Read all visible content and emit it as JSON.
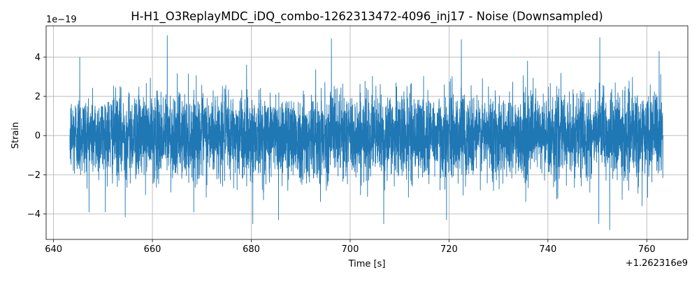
{
  "chart_data": {
    "type": "line",
    "title": "H-H1_O3ReplayMDC_iDQ_combo-1262313472-4096_inj17 - Noise (Downsampled)",
    "xlabel": "Time [s]",
    "ylabel": "Strain",
    "x_offset_label": "+1.262316e9",
    "y_exponent_label": "1e−19",
    "xlim": [
      638.5,
      768.3
    ],
    "ylim": [
      -5.3,
      5.6
    ],
    "x_ticks": [
      640,
      660,
      680,
      700,
      720,
      740,
      760
    ],
    "x_tick_labels": [
      "640",
      "660",
      "680",
      "700",
      "720",
      "740",
      "760"
    ],
    "y_ticks": [
      -4,
      -2,
      0,
      2,
      4
    ],
    "y_tick_labels": [
      "−4",
      "−2",
      "0",
      "2",
      "4"
    ],
    "grid": true,
    "line_color": "#1f77b4",
    "series": [
      {
        "x_start": 643.3,
        "x_end": 763.3,
        "noise_sigma": 1.05,
        "extremes": [
          {
            "x": 663.0,
            "y": 5.1
          },
          {
            "x": 696.2,
            "y": 4.95
          },
          {
            "x": 722.5,
            "y": 4.9
          },
          {
            "x": 750.5,
            "y": 5.0
          },
          {
            "x": 762.5,
            "y": 4.3
          },
          {
            "x": 645.3,
            "y": 4.0
          },
          {
            "x": 680.3,
            "y": -4.5
          },
          {
            "x": 685.5,
            "y": -4.3
          },
          {
            "x": 706.8,
            "y": -4.5
          },
          {
            "x": 719.5,
            "y": -4.3
          },
          {
            "x": 752.5,
            "y": -4.8
          },
          {
            "x": 750.3,
            "y": -4.5
          },
          {
            "x": 654.5,
            "y": -4.15
          }
        ]
      }
    ]
  }
}
